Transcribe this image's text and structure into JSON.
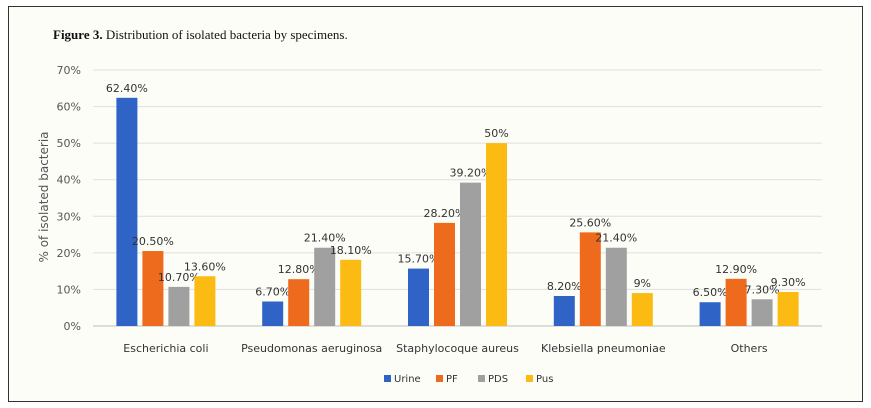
{
  "figure": {
    "label": "Figure 3.",
    "caption": "Distribution of isolated bacteria by specimens."
  },
  "chart_data": {
    "type": "bar",
    "title": "Figure 3. Distribution of isolated bacteria by specimens.",
    "xlabel": "",
    "ylabel": "% of isolated bacteria",
    "ylim": [
      0,
      70
    ],
    "yticks": [
      0,
      10,
      20,
      30,
      40,
      50,
      60,
      70
    ],
    "ytick_labels": [
      "0%",
      "10%",
      "20%",
      "30%",
      "40%",
      "50%",
      "60%",
      "70%"
    ],
    "grid": true,
    "legend_position": "bottom",
    "categories": [
      "Escherichia coli",
      "Pseudomonas aeruginosa",
      "Staphylocoque aureus",
      "Klebsiella pneumoniae",
      "Others"
    ],
    "series": [
      {
        "name": "Urine",
        "color": "#2f63c5",
        "values": [
          62.4,
          6.7,
          15.7,
          8.2,
          6.5
        ],
        "labels": [
          "62.40%",
          "6.70%",
          "15.70%",
          "8.20%",
          "6.50%"
        ]
      },
      {
        "name": "PF",
        "color": "#ee6a1c",
        "values": [
          20.5,
          12.8,
          28.2,
          25.6,
          12.9
        ],
        "labels": [
          "20.50%",
          "12.80%",
          "28.20%",
          "25.60%",
          "12.90%"
        ]
      },
      {
        "name": "PDS",
        "color": "#a0a0a0",
        "values": [
          10.7,
          21.4,
          39.2,
          21.4,
          7.3
        ],
        "labels": [
          "10.70%",
          "21.40%",
          "39.20%",
          "21.40%",
          "7.30%"
        ]
      },
      {
        "name": "Pus",
        "color": "#fbbb12",
        "values": [
          13.6,
          18.1,
          50,
          9,
          9.3
        ],
        "labels": [
          "13.60%",
          "18.10%",
          "50%",
          "9%",
          "9.30%"
        ]
      }
    ]
  }
}
